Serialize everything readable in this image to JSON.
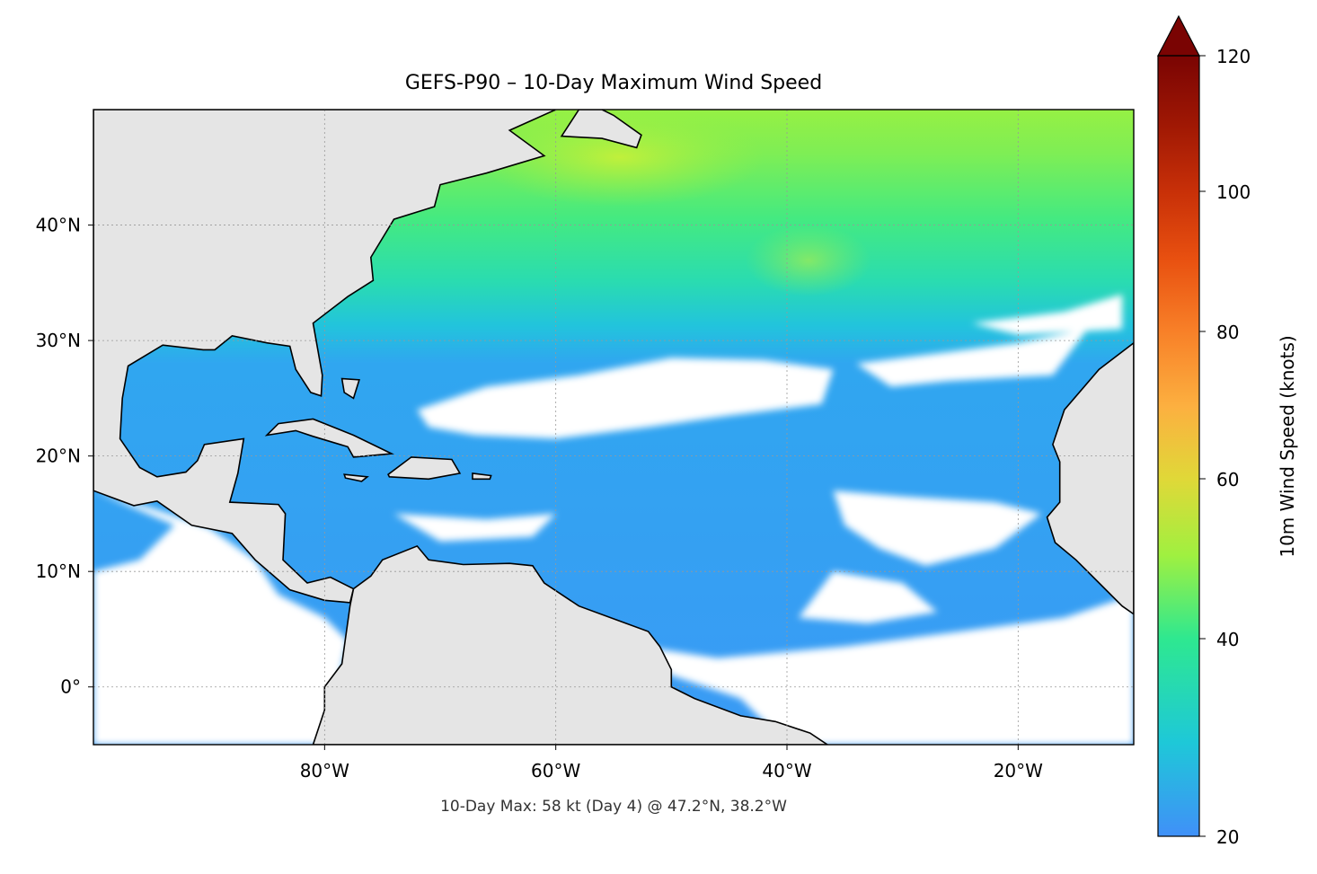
{
  "title": "GEFS-P90 – 10-Day Maximum Wind Speed",
  "footer": "10-Day Max: 58 kt (Day 4) @ 47.2°N, 38.2°W",
  "map": {
    "extent": {
      "lon": [
        -100,
        -10
      ],
      "lat": [
        -5,
        50
      ]
    },
    "x_ticks": [
      {
        "value": -80,
        "label": "80°W"
      },
      {
        "value": -60,
        "label": "60°W"
      },
      {
        "value": -40,
        "label": "40°W"
      },
      {
        "value": -20,
        "label": "20°W"
      }
    ],
    "y_ticks": [
      {
        "value": 40,
        "label": "40°N"
      },
      {
        "value": 30,
        "label": "30°N"
      },
      {
        "value": 20,
        "label": "20°N"
      },
      {
        "value": 10,
        "label": "10°N"
      },
      {
        "value": 0,
        "label": "0°"
      }
    ],
    "gridlines": true,
    "land_color": "#e5e5e5",
    "masked_below_color": "#ffffff"
  },
  "colorbar": {
    "label": "10m Wind Speed (knots)",
    "extend": "max",
    "range": [
      20,
      120
    ],
    "ticks": [
      {
        "value": 20,
        "label": "20"
      },
      {
        "value": 40,
        "label": "40"
      },
      {
        "value": 60,
        "label": "60"
      },
      {
        "value": 80,
        "label": "80"
      },
      {
        "value": 100,
        "label": "100"
      },
      {
        "value": 120,
        "label": "120"
      }
    ],
    "colors": [
      "#4090f8",
      "#1ec8d8",
      "#2ee890",
      "#a0f040",
      "#e0d838",
      "#fcb040",
      "#f88028",
      "#e85010",
      "#c83008",
      "#a01804",
      "#7a0403"
    ]
  }
}
